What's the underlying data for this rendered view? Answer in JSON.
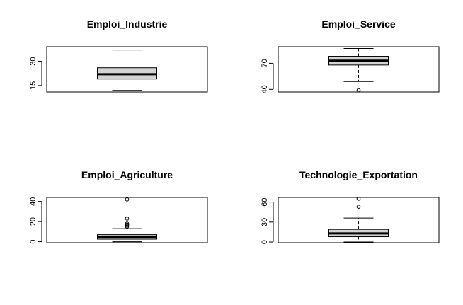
{
  "chart_data": [
    {
      "type": "box",
      "title": "Emploi_Industrie",
      "ylim": [
        11,
        39
      ],
      "yticks": [
        15,
        30
      ],
      "box": {
        "whisker_low": 12,
        "q1": 19,
        "median": 22,
        "q3": 26,
        "whisker_high": 37
      },
      "outliers": [],
      "box_fill": "#d3d3d3"
    },
    {
      "type": "box",
      "title": "Emploi_Service",
      "ylim": [
        37,
        89
      ],
      "yticks": [
        40,
        70
      ],
      "box": {
        "whisker_low": 49,
        "q1": 68,
        "median": 73,
        "q3": 78,
        "whisker_high": 87
      },
      "outliers": [
        39
      ],
      "box_fill": "#d3d3d3"
    },
    {
      "type": "box",
      "title": "Emploi_Agriculture",
      "ylim": [
        -1,
        44
      ],
      "yticks": [
        0,
        20,
        40
      ],
      "box": {
        "whisker_low": 0,
        "q1": 2.5,
        "median": 4.5,
        "q3": 7,
        "whisker_high": 13
      },
      "outliers": [
        15,
        16,
        17,
        18,
        23,
        42
      ],
      "box_fill": "#d3d3d3"
    },
    {
      "type": "box",
      "title": "Technologie_Exportation",
      "ylim": [
        -1,
        67
      ],
      "yticks": [
        0,
        30,
        60
      ],
      "box": {
        "whisker_low": 0,
        "q1": 8,
        "median": 13,
        "q3": 19,
        "whisker_high": 36
      },
      "outliers": [
        53,
        65
      ],
      "box_fill": "#d3d3d3"
    }
  ]
}
